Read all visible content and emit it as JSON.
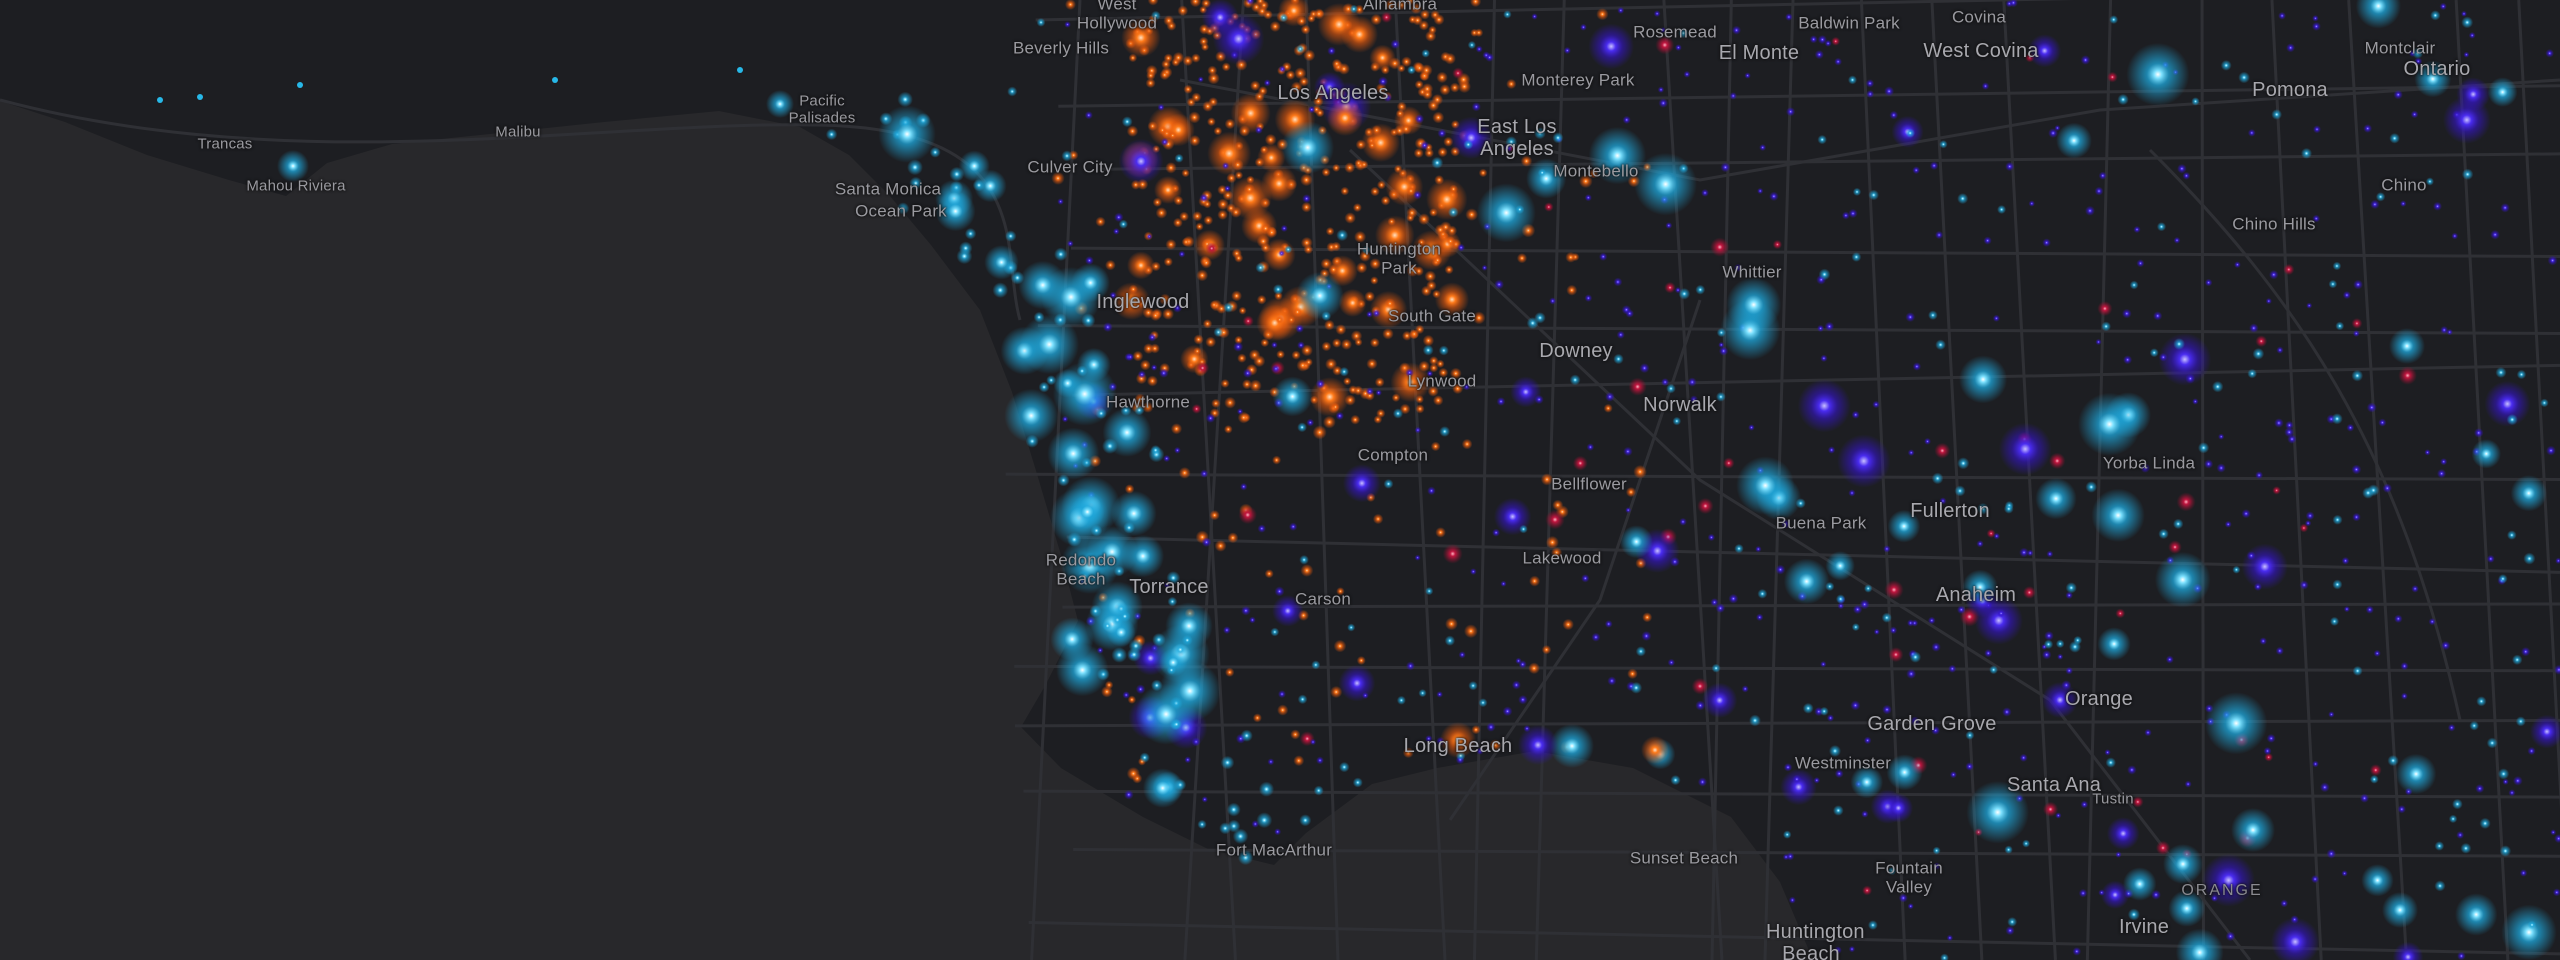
{
  "map": {
    "colors": {
      "sea": "#28282b",
      "land": "#1d1e22",
      "road": "#2e2f34",
      "label": "#9a9aa0",
      "point_cyan": "#27b8e8",
      "point_blue": "#3a1fd6",
      "point_orange": "#f26b12",
      "point_red": "#b0123a"
    },
    "place_labels": [
      {
        "id": "west-hollywood",
        "text": "West Hollywood",
        "size": "normal"
      },
      {
        "id": "trancas",
        "text": "Trancas",
        "size": "small"
      },
      {
        "id": "mahou-riviera",
        "text": "Mahou Riviera",
        "size": "small"
      },
      {
        "id": "malibu",
        "text": "Malibu",
        "size": "small"
      },
      {
        "id": "pacific-palisades",
        "text": "Pacific Palisades",
        "size": "small"
      },
      {
        "id": "beverly-hills",
        "text": "Beverly Hills",
        "size": "normal"
      },
      {
        "id": "culver-city",
        "text": "Culver City",
        "size": "normal"
      },
      {
        "id": "santa-monica",
        "text": "Santa Monica",
        "size": "normal"
      },
      {
        "id": "ocean-park",
        "text": "Ocean Park",
        "size": "normal"
      },
      {
        "id": "inglewood",
        "text": "Inglewood",
        "size": "big"
      },
      {
        "id": "hawthorne",
        "text": "Hawthorne",
        "size": "normal"
      },
      {
        "id": "los-angeles",
        "text": "Los Angeles",
        "size": "big"
      },
      {
        "id": "alhambra",
        "text": "Alhambra",
        "size": "normal"
      },
      {
        "id": "rosemead",
        "text": "Rosemead",
        "size": "normal"
      },
      {
        "id": "el-monte",
        "text": "El Monte",
        "size": "big"
      },
      {
        "id": "baldwin-park",
        "text": "Baldwin Park",
        "size": "normal"
      },
      {
        "id": "covina",
        "text": "Covina",
        "size": "normal"
      },
      {
        "id": "west-covina",
        "text": "West Covina",
        "size": "big"
      },
      {
        "id": "montclair",
        "text": "Montclair",
        "size": "normal"
      },
      {
        "id": "ontario",
        "text": "Ontario",
        "size": "big"
      },
      {
        "id": "pomona",
        "text": "Pomona",
        "size": "big"
      },
      {
        "id": "monterey-park",
        "text": "Monterey Park",
        "size": "normal"
      },
      {
        "id": "east-los-angeles",
        "text": "East Los Angeles",
        "size": "big"
      },
      {
        "id": "montebello",
        "text": "Montebello",
        "size": "normal"
      },
      {
        "id": "chino",
        "text": "Chino",
        "size": "normal"
      },
      {
        "id": "chino-hills",
        "text": "Chino Hills",
        "size": "normal"
      },
      {
        "id": "huntington-park",
        "text": "Huntington Park",
        "size": "normal"
      },
      {
        "id": "whittier",
        "text": "Whittier",
        "size": "normal"
      },
      {
        "id": "south-gate",
        "text": "South Gate",
        "size": "normal"
      },
      {
        "id": "downey",
        "text": "Downey",
        "size": "big"
      },
      {
        "id": "lynwood",
        "text": "Lynwood",
        "size": "normal"
      },
      {
        "id": "norwalk",
        "text": "Norwalk",
        "size": "big"
      },
      {
        "id": "compton",
        "text": "Compton",
        "size": "normal"
      },
      {
        "id": "yorba-linda",
        "text": "Yorba Linda",
        "size": "normal"
      },
      {
        "id": "bellflower",
        "text": "Bellflower",
        "size": "normal"
      },
      {
        "id": "fullerton",
        "text": "Fullerton",
        "size": "big"
      },
      {
        "id": "buena-park",
        "text": "Buena Park",
        "size": "normal"
      },
      {
        "id": "redondo-beach",
        "text": "Redondo Beach",
        "size": "normal"
      },
      {
        "id": "torrance",
        "text": "Torrance",
        "size": "big"
      },
      {
        "id": "carson",
        "text": "Carson",
        "size": "normal"
      },
      {
        "id": "lakewood",
        "text": "Lakewood",
        "size": "normal"
      },
      {
        "id": "anaheim",
        "text": "Anaheim",
        "size": "big"
      },
      {
        "id": "orange",
        "text": "Orange",
        "size": "big"
      },
      {
        "id": "garden-grove",
        "text": "Garden Grove",
        "size": "big"
      },
      {
        "id": "long-beach",
        "text": "Long Beach",
        "size": "big"
      },
      {
        "id": "westminster",
        "text": "Westminster",
        "size": "normal"
      },
      {
        "id": "santa-ana",
        "text": "Santa Ana",
        "size": "big"
      },
      {
        "id": "tustin",
        "text": "Tustin",
        "size": "small"
      },
      {
        "id": "fort-macarthur",
        "text": "Fort MacArthur",
        "size": "normal"
      },
      {
        "id": "sunset-beach",
        "text": "Sunset Beach",
        "size": "normal"
      },
      {
        "id": "fountain-valley",
        "text": "Fountain Valley",
        "size": "normal"
      },
      {
        "id": "orange-county",
        "text": "ORANGE",
        "size": "caps"
      },
      {
        "id": "irvine",
        "text": "Irvine",
        "size": "big"
      },
      {
        "id": "huntington-beach",
        "text": "Huntington Beach",
        "size": "big"
      }
    ]
  }
}
